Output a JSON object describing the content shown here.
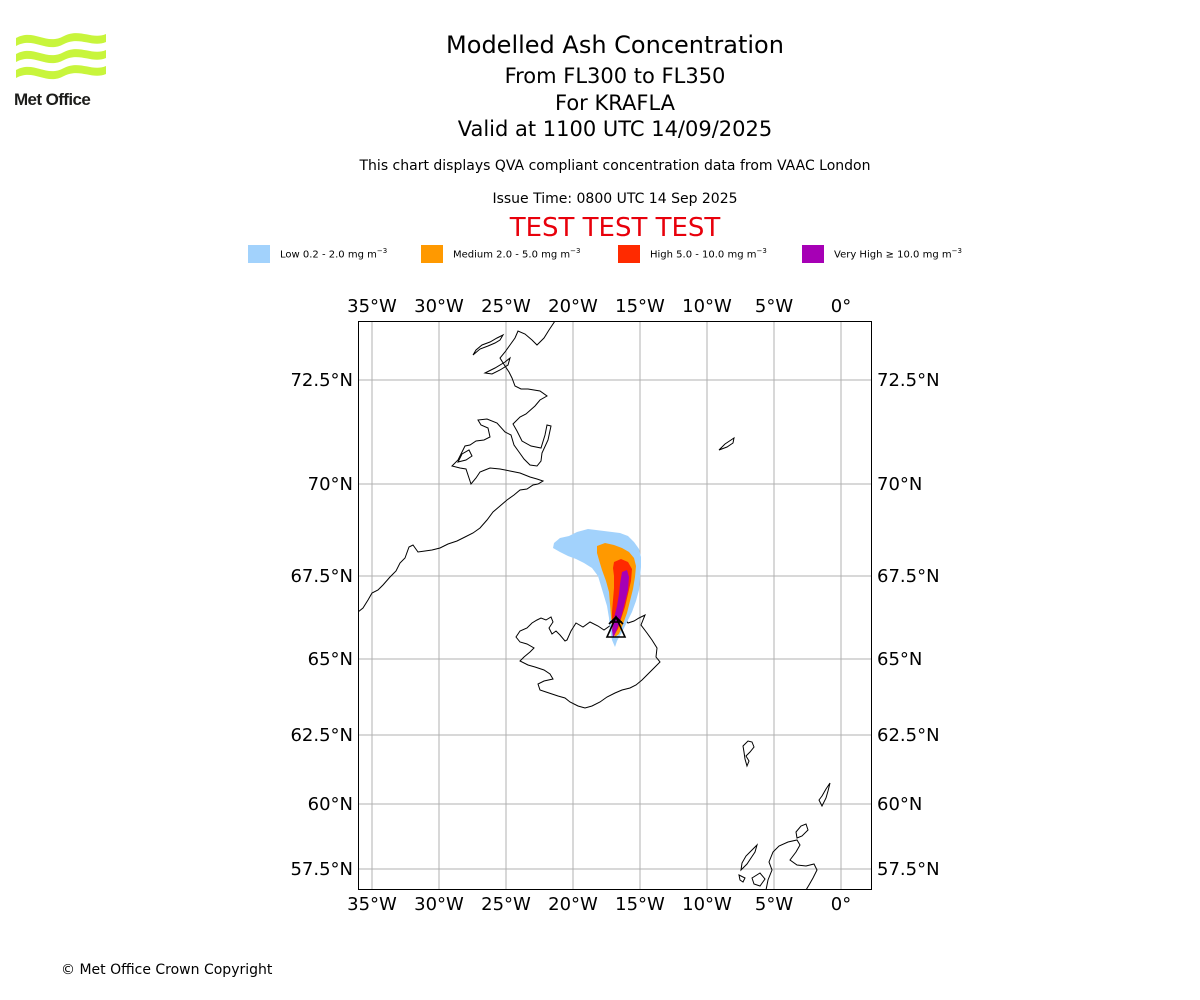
{
  "logo": {
    "text": "Met Office"
  },
  "header": {
    "title": "Modelled Ash Concentration",
    "line1": "From FL300 to FL350",
    "line2": "For KRAFLA",
    "line3": "Valid at 1100 UTC 14/09/2025",
    "note": "This chart displays QVA compliant concentration data from VAAC London",
    "issue_time": "Issue Time: 0800 UTC 14 Sep 2025",
    "test_banner": "TEST TEST TEST"
  },
  "legend": [
    {
      "prefix": "Low 0.2 - 2.0 mg m",
      "exp": "−3",
      "color": "#a2d2fc"
    },
    {
      "prefix": "Medium 2.0 - 5.0 mg m",
      "exp": "−3",
      "color": "#ff9900"
    },
    {
      "prefix": "High 5.0 - 10.0 mg m",
      "exp": "−3",
      "color": "#ff2a00"
    },
    {
      "prefix": "Very High  ≥  10.0 mg m",
      "exp": "−3",
      "color": "#a600b5"
    }
  ],
  "map": {
    "volcano": "KRAFLA",
    "lon_labels": [
      "35°W",
      "30°W",
      "25°W",
      "20°W",
      "15°W",
      "10°W",
      "5°W",
      "0°"
    ],
    "lat_labels": [
      "72.5°N",
      "70°N",
      "67.5°N",
      "65°N",
      "62.5°N",
      "60°N",
      "57.5°N"
    ]
  },
  "footer": {
    "copyright": "© Met Office Crown Copyright"
  }
}
